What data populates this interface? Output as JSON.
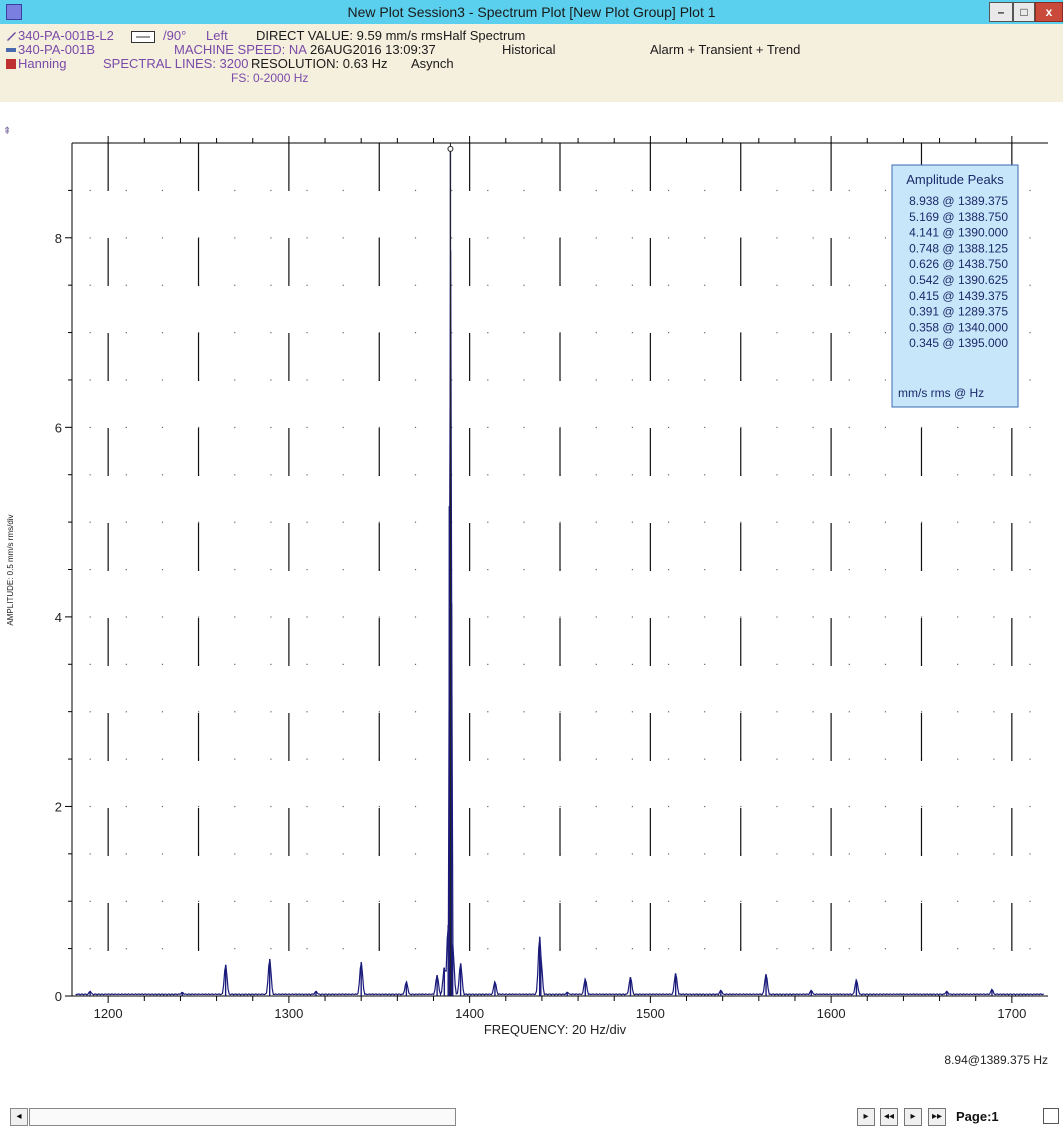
{
  "window": {
    "title": "New Plot Session3 - Spectrum Plot [New Plot Group] Plot 1",
    "min_label": "–",
    "max_label": "□",
    "close_label": "x"
  },
  "header": {
    "point_id": "340-PA-001B-L2",
    "machine_id": "340-PA-001B",
    "window_fn": "Hanning",
    "angle": "/90°",
    "side": "Left",
    "direct_value": "DIRECT VALUE: 9.59 mm/s rms",
    "spectrum_type": "Half Spectrum",
    "machine_speed": "MACHINE SPEED: NA",
    "timestamp": "26AUG2016 13:09:37",
    "data_type": "Historical",
    "alarm_mode": "Alarm + Transient + Trend",
    "spectral_lines": "SPECTRAL LINES: 3200",
    "resolution": "RESOLUTION:  0.63 Hz",
    "sync": "Asynch",
    "fs": "FS: 0-2000 Hz"
  },
  "chart_data": {
    "type": "line",
    "xlabel": "FREQUENCY: 20 Hz/div",
    "ylabel": "AMPLITUDE: 0.5 mm/s rms/div",
    "xlim": [
      1180,
      1720
    ],
    "ylim": [
      0,
      9
    ],
    "x_ticks": [
      1200,
      1300,
      1400,
      1500,
      1600,
      1700
    ],
    "y_ticks": [
      0,
      2,
      4,
      6,
      8
    ],
    "series_color": "#1a1a7a",
    "peaks": [
      {
        "x": 1190.0,
        "y": 0.05
      },
      {
        "x": 1241.0,
        "y": 0.04
      },
      {
        "x": 1265.0,
        "y": 0.33
      },
      {
        "x": 1289.375,
        "y": 0.391
      },
      {
        "x": 1315.0,
        "y": 0.05
      },
      {
        "x": 1340.0,
        "y": 0.358
      },
      {
        "x": 1365.0,
        "y": 0.15
      },
      {
        "x": 1382.0,
        "y": 0.22
      },
      {
        "x": 1386.0,
        "y": 0.3
      },
      {
        "x": 1388.125,
        "y": 0.748
      },
      {
        "x": 1388.75,
        "y": 5.169
      },
      {
        "x": 1389.375,
        "y": 8.938
      },
      {
        "x": 1390.0,
        "y": 4.141
      },
      {
        "x": 1390.625,
        "y": 0.542
      },
      {
        "x": 1395.0,
        "y": 0.345
      },
      {
        "x": 1414.0,
        "y": 0.15
      },
      {
        "x": 1438.75,
        "y": 0.626
      },
      {
        "x": 1439.375,
        "y": 0.415
      },
      {
        "x": 1454.0,
        "y": 0.04
      },
      {
        "x": 1464.0,
        "y": 0.18
      },
      {
        "x": 1489.0,
        "y": 0.2
      },
      {
        "x": 1514.0,
        "y": 0.24
      },
      {
        "x": 1539.0,
        "y": 0.06
      },
      {
        "x": 1564.0,
        "y": 0.23
      },
      {
        "x": 1589.0,
        "y": 0.06
      },
      {
        "x": 1614.0,
        "y": 0.17
      },
      {
        "x": 1664.0,
        "y": 0.05
      },
      {
        "x": 1689.0,
        "y": 0.07
      }
    ],
    "cursor": {
      "x": 1389.375,
      "y": 8.938
    },
    "legend": {
      "title": "Amplitude Peaks",
      "entries": [
        "8.938 @ 1389.375",
        "5.169 @ 1388.750",
        "4.141 @ 1390.000",
        "0.748 @ 1388.125",
        "0.626 @ 1438.750",
        "0.542 @ 1390.625",
        "0.415 @ 1439.375",
        "0.391 @ 1289.375",
        "0.358 @ 1340.000",
        "0.345 @ 1395.000"
      ],
      "units": "mm/s rms @      Hz",
      "placement": "top-right"
    },
    "cursor_readout": "8.94@1389.375 Hz"
  },
  "footer": {
    "page_label": "Page:1",
    "scroll_left": "◂",
    "nav_next": "▸",
    "nav_first": "◂◂",
    "nav_play": "▸",
    "nav_last": "▸▸"
  }
}
